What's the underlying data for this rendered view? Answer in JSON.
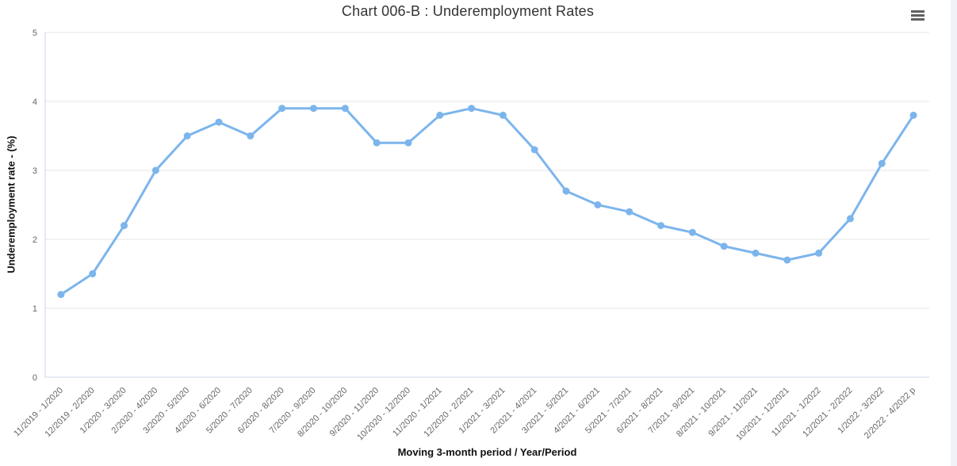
{
  "header": {
    "title": "Chart 006-B : Underemployment Rates",
    "menu_icon": "hamburger-menu-icon"
  },
  "colors": {
    "series": "#7cb5ec",
    "gridline": "#e6e6e6",
    "axis_line": "#ccd6eb",
    "tick_label": "#666666",
    "title": "#333333",
    "edge_strip": "#f0f2f8"
  },
  "chart_data": {
    "type": "line",
    "title": "Chart 006-B : Underemployment Rates",
    "xlabel": "Moving 3-month period / Year/Period",
    "ylabel": "Underemployment rate - (%)",
    "ylim": [
      0,
      5
    ],
    "yticks": [
      0,
      1,
      2,
      3,
      4,
      5
    ],
    "grid": true,
    "legend_position": "none",
    "series_color": "#7cb5ec",
    "categories": [
      "11/2019 - 1/2020",
      "12/2019 - 2/2020",
      "1/2020 - 3/2020",
      "2/2020 - 4/2020",
      "3/2020 - 5/2020",
      "4/2020 - 6/2020",
      "5/2020 - 7/2020",
      "6/2020 - 8/2020",
      "7/2020 - 9/2020",
      "8/2020 - 10/2020",
      "9/2020 - 11/2020",
      "10/2020 - 12/2020",
      "11/2020 - 1/2021",
      "12/2020 - 2/2021",
      "1/2021 - 3/2021",
      "2/2021 - 4/2021",
      "3/2021 - 5/2021",
      "4/2021 - 6/2021",
      "5/2021 - 7/2021",
      "6/2021 - 8/2021",
      "7/2021 - 9/2021",
      "8/2021 - 10/2021",
      "9/2021 - 11/2021",
      "10/2021 - 12/2021",
      "11/2021 - 1/2022",
      "12/2021 - 2/2022",
      "1/2022 - 3/2022",
      "2/2022 - 4/2022 p"
    ],
    "values": [
      1.2,
      1.5,
      2.2,
      3.0,
      3.5,
      3.7,
      3.5,
      3.9,
      3.9,
      3.9,
      3.4,
      3.4,
      3.8,
      3.9,
      3.8,
      3.3,
      2.7,
      2.5,
      2.4,
      2.2,
      2.1,
      1.9,
      1.8,
      1.7,
      1.8,
      2.3,
      3.1,
      3.8
    ]
  }
}
